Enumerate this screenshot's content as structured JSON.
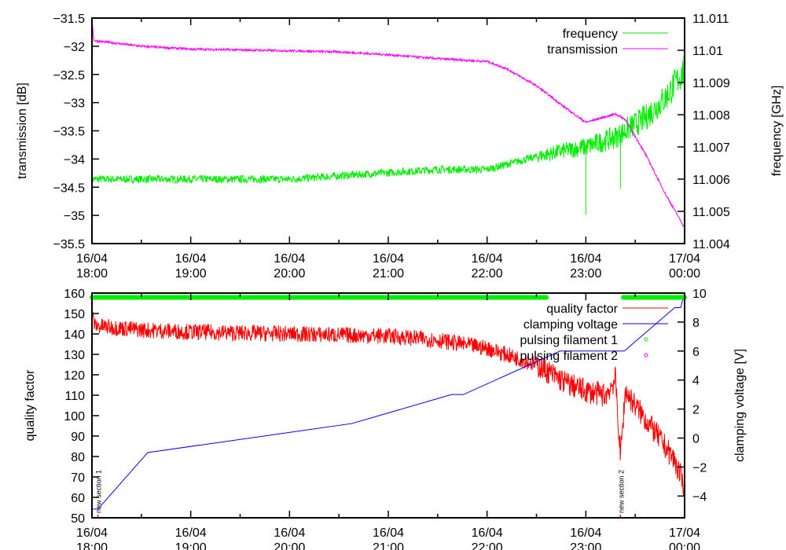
{
  "chart_data": [
    {
      "type": "line",
      "x_unit": "hours since 16/04 18:00",
      "xlim": [
        0,
        6
      ],
      "x_ticks": [
        {
          "date": "16/04",
          "time": "18:00"
        },
        {
          "date": "16/04",
          "time": "19:00"
        },
        {
          "date": "16/04",
          "time": "20:00"
        },
        {
          "date": "16/04",
          "time": "21:00"
        },
        {
          "date": "16/04",
          "time": "22:00"
        },
        {
          "date": "16/04",
          "time": "23:00"
        },
        {
          "date": "17/04",
          "time": "00:00"
        }
      ],
      "ylabel": "transmission [dB]",
      "ylim": [
        -35.5,
        -31.5
      ],
      "y_ticks": [
        "-31.5",
        "-32",
        "-32.5",
        "-33",
        "-33.5",
        "-34",
        "-34.5",
        "-35",
        "-35.5"
      ],
      "y2label": "frequency [GHz]",
      "y2lim": [
        11.004,
        11.011
      ],
      "y2_ticks": [
        "11.004",
        "11.005",
        "11.006",
        "11.007",
        "11.008",
        "11.009",
        "11.01",
        "11.011"
      ],
      "legend_position": "top-right",
      "series": [
        {
          "name": "frequency",
          "axis": "y2",
          "color": "#00ee00",
          "points": [
            [
              0,
              11.006
            ],
            [
              0.5,
              11.006
            ],
            [
              1,
              11.006
            ],
            [
              1.5,
              11.006
            ],
            [
              2,
              11.006
            ],
            [
              2.5,
              11.0061
            ],
            [
              3,
              11.0062
            ],
            [
              3.5,
              11.0063
            ],
            [
              4,
              11.0063
            ],
            [
              4.5,
              11.0067
            ],
            [
              4.8,
              11.0069
            ],
            [
              5.0,
              11.007
            ],
            [
              5.3,
              11.0073
            ],
            [
              5.6,
              11.0079
            ],
            [
              5.8,
              11.0085
            ],
            [
              6.0,
              11.0094
            ]
          ],
          "spikes": [
            [
              5.0,
              11.0049
            ],
            [
              5.35,
              11.0057
            ]
          ]
        },
        {
          "name": "transmission",
          "axis": "y",
          "color": "#ff00ff",
          "points": [
            [
              0,
              -31.5
            ],
            [
              0.02,
              -31.9
            ],
            [
              0.5,
              -32.0
            ],
            [
              1,
              -32.05
            ],
            [
              2,
              -32.08
            ],
            [
              2.5,
              -32.1
            ],
            [
              3,
              -32.15
            ],
            [
              3.5,
              -32.22
            ],
            [
              4,
              -32.27
            ],
            [
              4.2,
              -32.4
            ],
            [
              4.5,
              -32.7
            ],
            [
              4.8,
              -33.1
            ],
            [
              5.0,
              -33.35
            ],
            [
              5.1,
              -33.3
            ],
            [
              5.3,
              -33.2
            ],
            [
              5.4,
              -33.3
            ],
            [
              5.6,
              -33.9
            ],
            [
              5.8,
              -34.6
            ],
            [
              6.0,
              -35.22
            ]
          ]
        }
      ]
    },
    {
      "type": "line",
      "x_unit": "hours since 16/04 18:00",
      "xlim": [
        0,
        6
      ],
      "x_ticks": [
        {
          "date": "16/04",
          "time": "18:00"
        },
        {
          "date": "16/04",
          "time": "19:00"
        },
        {
          "date": "16/04",
          "time": "20:00"
        },
        {
          "date": "16/04",
          "time": "21:00"
        },
        {
          "date": "16/04",
          "time": "22:00"
        },
        {
          "date": "16/04",
          "time": "23:00"
        },
        {
          "date": "17/04",
          "time": "00:00"
        }
      ],
      "ylabel": "quality factor",
      "ylim": [
        50,
        160
      ],
      "y_ticks": [
        "50",
        "60",
        "70",
        "80",
        "90",
        "100",
        "110",
        "120",
        "130",
        "140",
        "150",
        "160"
      ],
      "y2label": "clamping voltage [V]",
      "y2lim": [
        -5.5,
        10
      ],
      "y2_ticks": [
        "-4",
        "-2",
        "0",
        "2",
        "4",
        "6",
        "8",
        "10"
      ],
      "legend_position": "top-right",
      "series": [
        {
          "name": "quality factor",
          "axis": "y",
          "color": "#ff0000",
          "points": [
            [
              0,
              150
            ],
            [
              0.03,
              144
            ],
            [
              0.5,
              142
            ],
            [
              1,
              141
            ],
            [
              2,
              140
            ],
            [
              3,
              139
            ],
            [
              3.5,
              137
            ],
            [
              4,
              133
            ],
            [
              4.5,
              125
            ],
            [
              4.8,
              116
            ],
            [
              5.0,
              112
            ],
            [
              5.2,
              110
            ],
            [
              5.3,
              118
            ],
            [
              5.35,
              80
            ],
            [
              5.4,
              112
            ],
            [
              5.5,
              105
            ],
            [
              5.7,
              92
            ],
            [
              5.9,
              78
            ],
            [
              6.0,
              65
            ]
          ]
        },
        {
          "name": "clamping voltage",
          "axis": "y2",
          "color": "#0000ff",
          "points": [
            [
              0,
              -4.9
            ],
            [
              0.06,
              -4.9
            ],
            [
              0.565,
              -1
            ],
            [
              2.63,
              1
            ],
            [
              3.64,
              3
            ],
            [
              3.76,
              3
            ],
            [
              4.74,
              6
            ],
            [
              5.39,
              6
            ],
            [
              5.9,
              9
            ],
            [
              5.96,
              9
            ],
            [
              6.0,
              10
            ]
          ]
        },
        {
          "name": "pulsing filament 1",
          "axis": "y2",
          "color": "#00ee00",
          "style": "points",
          "value": 9.7,
          "ranges": [
            [
              0,
              4.6
            ],
            [
              5.38,
              6.0
            ]
          ]
        },
        {
          "name": "pulsing filament 2",
          "axis": "y2",
          "color": "#ff00ff",
          "style": "points",
          "ranges": []
        }
      ],
      "annotations": [
        {
          "x": 0.06,
          "text": "new section 1"
        },
        {
          "x": 5.35,
          "text": "new section 2"
        }
      ]
    }
  ]
}
